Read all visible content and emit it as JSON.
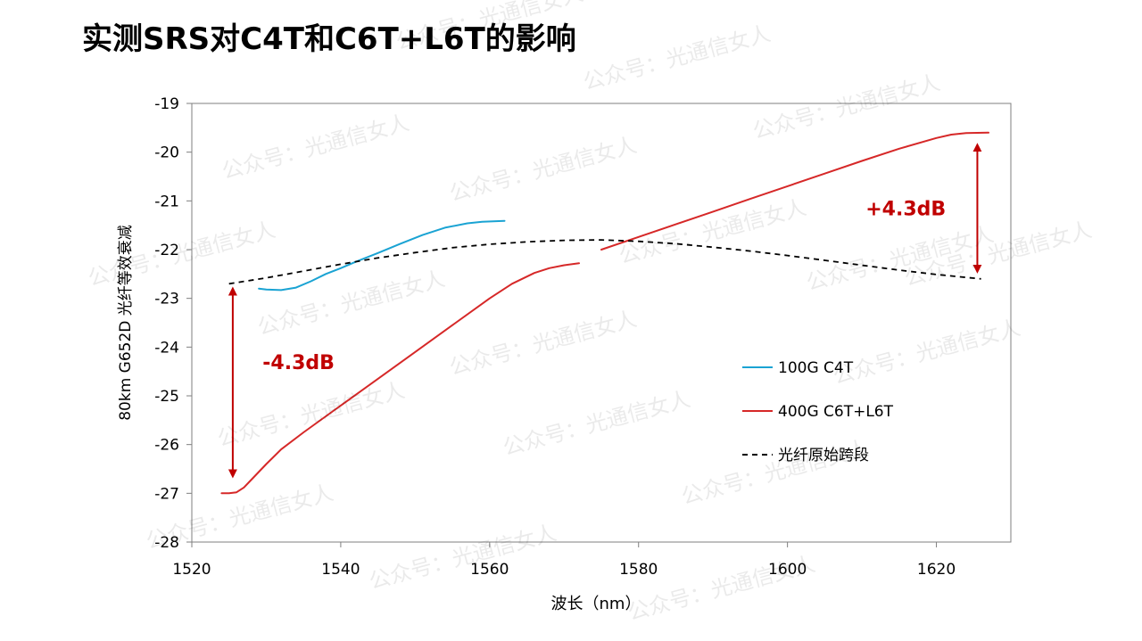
{
  "page": {
    "title": "实测SRS对C4T和C6T+L6T的影响",
    "watermark_text": "公众号：光通信女人"
  },
  "chart_data": {
    "type": "line",
    "title": "实测SRS对C4T和C6T+L6T的影响",
    "xlabel": "波长（nm）",
    "ylabel": "80km G652D 光纤等效衰减",
    "xlim": [
      1520,
      1630
    ],
    "ylim": [
      -28,
      -19
    ],
    "xticks": [
      1520,
      1540,
      1560,
      1580,
      1600,
      1620
    ],
    "yticks": [
      -19,
      -20,
      -21,
      -22,
      -23,
      -24,
      -25,
      -26,
      -27,
      -28
    ],
    "grid": false,
    "legend_position": "right-center",
    "series": [
      {
        "name": "100G C4T",
        "color": "#1aa3d3",
        "dash": "solid",
        "x": [
          1529,
          1530,
          1532,
          1534,
          1536,
          1538,
          1540,
          1542,
          1545,
          1548,
          1551,
          1554,
          1557,
          1559,
          1562
        ],
        "y": [
          -22.8,
          -22.82,
          -22.83,
          -22.78,
          -22.65,
          -22.5,
          -22.38,
          -22.25,
          -22.07,
          -21.88,
          -21.7,
          -21.55,
          -21.46,
          -21.43,
          -21.41
        ]
      },
      {
        "name": "400G C6T+L6T",
        "color": "#d62828",
        "dash": "solid",
        "segments": [
          {
            "x": [
              1524,
              1525,
              1526,
              1527,
              1528,
              1530,
              1532,
              1535,
              1540,
              1545,
              1550,
              1555,
              1560,
              1563,
              1566,
              1568,
              1570,
              1572
            ],
            "y": [
              -27.0,
              -27.0,
              -26.98,
              -26.88,
              -26.72,
              -26.4,
              -26.1,
              -25.75,
              -25.2,
              -24.65,
              -24.1,
              -23.55,
              -23.0,
              -22.7,
              -22.48,
              -22.38,
              -22.32,
              -22.28
            ]
          },
          {
            "x": [
              1575,
              1580,
              1585,
              1590,
              1595,
              1600,
              1605,
              1610,
              1615,
              1620,
              1622,
              1624,
              1627
            ],
            "y": [
              -22.0,
              -21.74,
              -21.48,
              -21.22,
              -20.96,
              -20.7,
              -20.44,
              -20.18,
              -19.93,
              -19.71,
              -19.64,
              -19.61,
              -19.6
            ]
          }
        ]
      },
      {
        "name": "光纤原始跨段",
        "color": "#000000",
        "dash": "dashed",
        "x": [
          1525,
          1530,
          1535,
          1540,
          1545,
          1550,
          1555,
          1560,
          1565,
          1570,
          1575,
          1580,
          1585,
          1590,
          1595,
          1600,
          1605,
          1610,
          1615,
          1620,
          1626
        ],
        "y": [
          -22.7,
          -22.58,
          -22.44,
          -22.3,
          -22.17,
          -22.06,
          -21.96,
          -21.89,
          -21.84,
          -21.81,
          -21.8,
          -21.83,
          -21.88,
          -21.95,
          -22.03,
          -22.12,
          -22.22,
          -22.32,
          -22.42,
          -22.51,
          -22.6
        ]
      }
    ],
    "annotations": [
      {
        "text": "-4.3dB",
        "color": "#c00000",
        "x": 1529.5,
        "y": -24.45,
        "arrow_x": 1525.5,
        "arrow_from": -22.85,
        "arrow_to": -26.6
      },
      {
        "text": "+4.3dB",
        "color": "#c00000",
        "x": 1610.5,
        "y": -21.3,
        "arrow_x": 1625.5,
        "arrow_from": -19.9,
        "arrow_to": -22.4
      }
    ]
  }
}
